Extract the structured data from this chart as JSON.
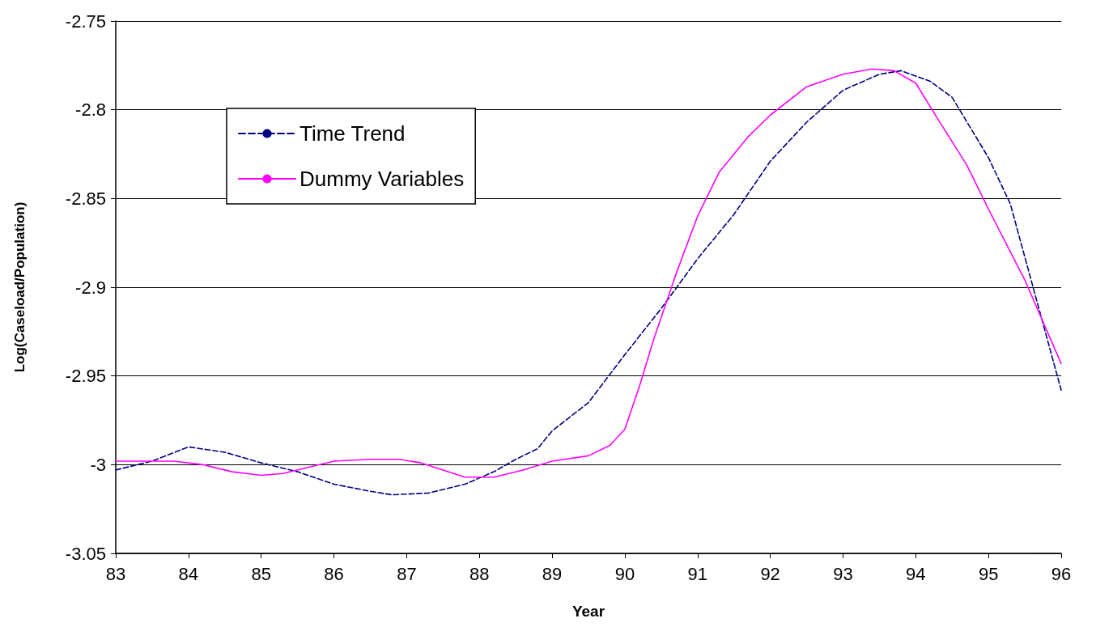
{
  "chart_data": {
    "type": "line",
    "xlabel": "Year",
    "ylabel": "Log(Caseload/Population)",
    "xlim": [
      83,
      96
    ],
    "xticks": [
      83,
      84,
      85,
      86,
      87,
      88,
      89,
      90,
      91,
      92,
      93,
      94,
      95,
      96
    ],
    "ylim": [
      -3.05,
      -2.75
    ],
    "yticks": [
      -3.05,
      -3,
      -2.95,
      -2.9,
      -2.85,
      -2.8,
      -2.75
    ],
    "grid": "y",
    "legend": "top left",
    "marker": "none",
    "series": [
      {
        "name": "Time Trend",
        "color": "#000080",
        "line_style": "dashed",
        "x": [
          83,
          83.5,
          84,
          84.5,
          85,
          85.5,
          86,
          86.5,
          86.8,
          87.3,
          87.8,
          88.2,
          88.5,
          88.8,
          89,
          89.5,
          90,
          90.5,
          91,
          91.5,
          92,
          92.5,
          93,
          93.5,
          93.8,
          94.2,
          94.5,
          95,
          95.3,
          95.6,
          96
        ],
        "values": [
          -3.003,
          -2.998,
          -2.99,
          -2.993,
          -2.999,
          -3.004,
          -3.011,
          -3.015,
          -3.017,
          -3.016,
          -3.011,
          -3.004,
          -2.997,
          -2.991,
          -2.981,
          -2.965,
          -2.938,
          -2.912,
          -2.884,
          -2.859,
          -2.829,
          -2.807,
          -2.789,
          -2.78,
          -2.778,
          -2.784,
          -2.793,
          -2.827,
          -2.853,
          -2.898,
          -2.958
        ]
      },
      {
        "name": "Dummy Variables",
        "color": "#ff00ff",
        "line_style": "solid",
        "x": [
          83,
          83.8,
          84.2,
          84.6,
          85,
          85.3,
          85.7,
          86,
          86.5,
          86.9,
          87.2,
          87.5,
          87.8,
          88.2,
          88.6,
          89,
          89.5,
          89.8,
          90,
          90.2,
          90.4,
          90.7,
          91,
          91.3,
          91.7,
          92,
          92.5,
          93,
          93.4,
          93.7,
          94,
          94.3,
          94.7,
          95,
          95.5,
          96
        ],
        "values": [
          -2.998,
          -2.998,
          -3.0,
          -3.004,
          -3.006,
          -3.005,
          -3.001,
          -2.998,
          -2.997,
          -2.997,
          -2.999,
          -3.003,
          -3.007,
          -3.007,
          -3.003,
          -2.998,
          -2.995,
          -2.989,
          -2.98,
          -2.956,
          -2.929,
          -2.893,
          -2.86,
          -2.835,
          -2.815,
          -2.803,
          -2.787,
          -2.78,
          -2.777,
          -2.778,
          -2.785,
          -2.805,
          -2.831,
          -2.856,
          -2.896,
          -2.943
        ]
      }
    ]
  }
}
